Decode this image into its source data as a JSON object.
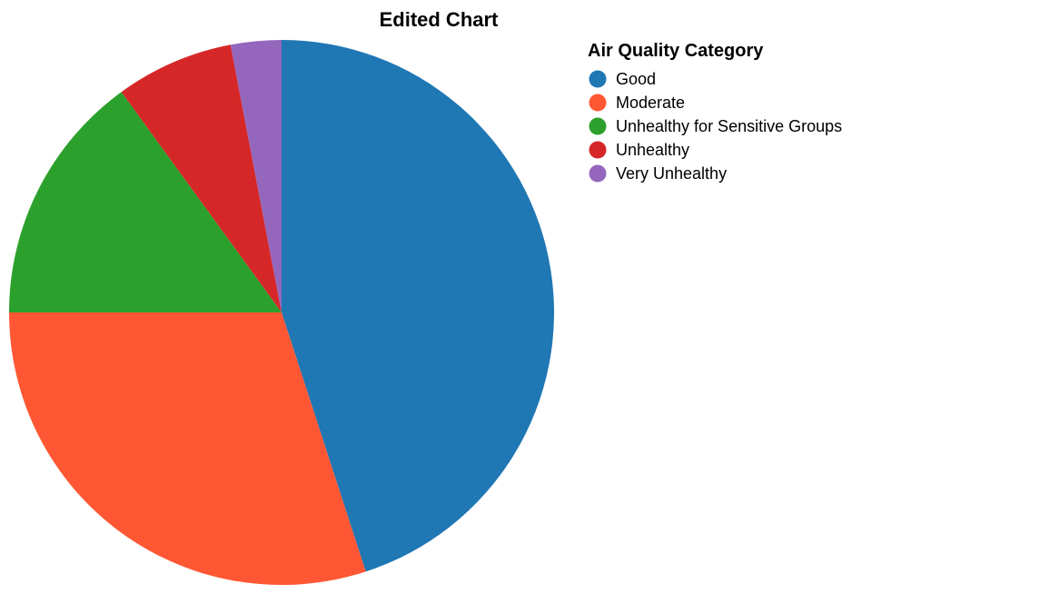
{
  "chart_data": {
    "type": "pie",
    "title": "Edited Chart",
    "legend": {
      "title": "Air Quality Category",
      "placement": "right"
    },
    "categories": [
      "Good",
      "Moderate",
      "Unhealthy for Sensitive Groups",
      "Unhealthy",
      "Very Unhealthy"
    ],
    "values": [
      45,
      30,
      15,
      7,
      3
    ],
    "colors": [
      "#1f77b4",
      "#ff5733",
      "#2ca02c",
      "#d62728",
      "#9467bd"
    ]
  }
}
